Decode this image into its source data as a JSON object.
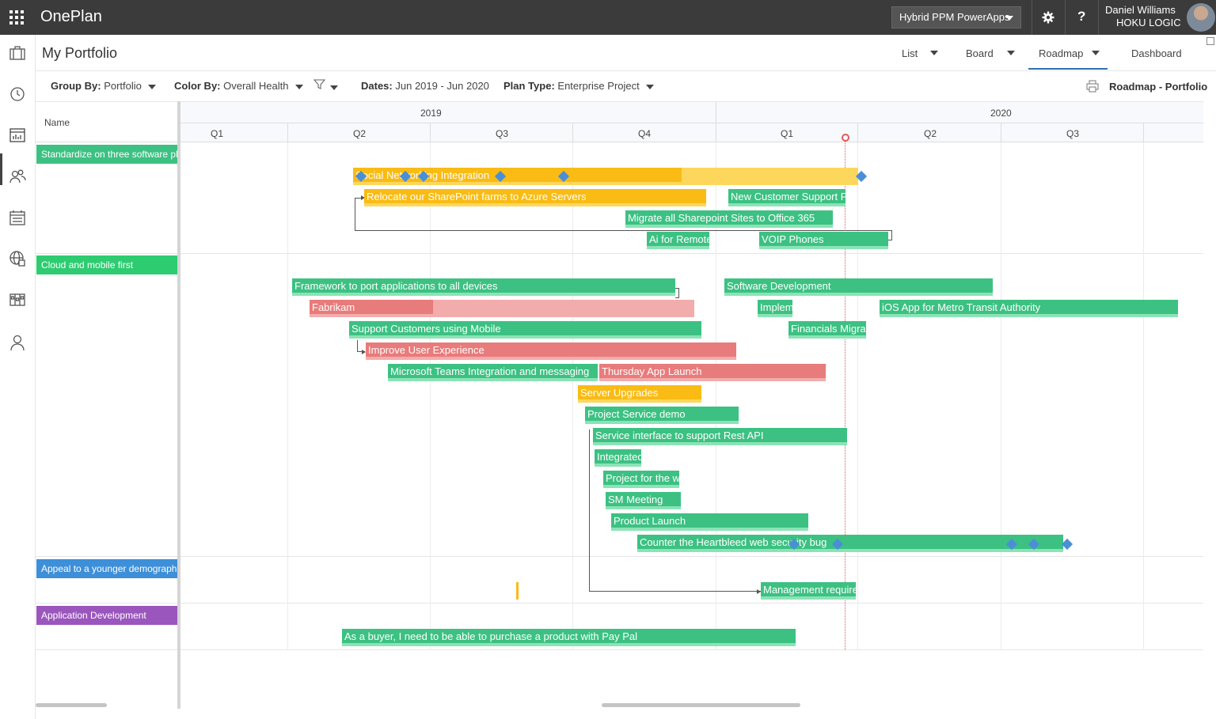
{
  "topbar": {
    "app_title": "OnePlan",
    "environment": "Hybrid PPM PowerApps",
    "user_name": "Daniel Williams",
    "user_org": "HOKU LOGIC",
    "help_label": "?"
  },
  "rail": {
    "icons": [
      "briefcase-icon",
      "history-icon",
      "roadmap-icon",
      "people-icon",
      "calendar-icon",
      "globe-icon",
      "board-icon",
      "user-icon"
    ]
  },
  "page": {
    "title": "My Portfolio",
    "views": [
      "List",
      "Board",
      "Roadmap",
      "Dashboard"
    ],
    "active_view": "Roadmap"
  },
  "filters": {
    "group_by_label": "Group By:",
    "group_by_value": "Portfolio",
    "color_by_label": "Color By:",
    "color_by_value": "Overall Health",
    "dates_label": "Dates:",
    "dates_value": "Jun 2019 - Jun 2020",
    "plan_type_label": "Plan Type:",
    "plan_type_value": "Enterprise Project",
    "roadmap_title": "Roadmap - Portfolio"
  },
  "grid": {
    "name_header": "Name",
    "years": [
      "2019",
      "2020"
    ],
    "quarters": [
      "Q1",
      "Q2",
      "Q3",
      "Q4",
      "Q1",
      "Q2",
      "Q3"
    ]
  },
  "colors": {
    "green": "#3cc182",
    "yellow": "#f9bb14",
    "red": "#e87b7b",
    "blue": "#3d8fd9",
    "purple": "#9b56bd"
  },
  "groups": [
    {
      "label": "Standardize on three software platforms",
      "color": "#3cc182"
    },
    {
      "label": "Cloud and mobile first",
      "color": "#2ecc71"
    },
    {
      "label": "Appeal to a younger demographic",
      "color": "#3d8fd9"
    },
    {
      "label": "Application Development",
      "color": "#9b56bd"
    }
  ],
  "bars": [
    {
      "label": "Social Networking Integration",
      "health": "yellow",
      "progress": 0.65
    },
    {
      "label": "Relocate our SharePoint farms to Azure Servers",
      "health": "yellow",
      "progress": 1
    },
    {
      "label": "New Customer Support Portal",
      "health": "green",
      "progress": 1
    },
    {
      "label": "Migrate all Sharepoint Sites to Office 365",
      "health": "green",
      "progress": 1
    },
    {
      "label": "Ai for Remote",
      "health": "green",
      "progress": 1
    },
    {
      "label": "VOIP Phones",
      "health": "green",
      "progress": 1
    },
    {
      "label": "Framework to port applications to all devices",
      "health": "green",
      "progress": 1
    },
    {
      "label": "Software Development",
      "health": "green",
      "progress": 1
    },
    {
      "label": "Fabrikam",
      "health": "red",
      "progress": 0.32
    },
    {
      "label": "Implem",
      "health": "green",
      "progress": 1
    },
    {
      "label": "iOS App for Metro Transit Authority",
      "health": "green",
      "progress": 1
    },
    {
      "label": "Support Customers using Mobile",
      "health": "green",
      "progress": 1
    },
    {
      "label": "Financials Migrat",
      "health": "green",
      "progress": 1
    },
    {
      "label": "Improve User Experience",
      "health": "red",
      "progress": 1
    },
    {
      "label": "Microsoft Teams Integration and messaging",
      "health": "green",
      "progress": 1
    },
    {
      "label": "Thursday App Launch",
      "health": "red",
      "progress": 1
    },
    {
      "label": "Server Upgrades",
      "health": "yellow",
      "progress": 1
    },
    {
      "label": "Project Service demo",
      "health": "green",
      "progress": 1
    },
    {
      "label": "Service interface to support Rest API",
      "health": "green",
      "progress": 1
    },
    {
      "label": "Integrated",
      "health": "green",
      "progress": 1
    },
    {
      "label": "Project for the w",
      "health": "green",
      "progress": 1
    },
    {
      "label": "SM Meeting",
      "health": "green",
      "progress": 1
    },
    {
      "label": "Product Launch",
      "health": "green",
      "progress": 1
    },
    {
      "label": "Counter the Heartbleed web security bug",
      "health": "green",
      "progress": 1
    },
    {
      "label": "Management require",
      "health": "green",
      "progress": 1
    },
    {
      "label": "As a buyer, I need to be able to purchase a product with Pay Pal",
      "health": "green",
      "progress": 1
    }
  ]
}
